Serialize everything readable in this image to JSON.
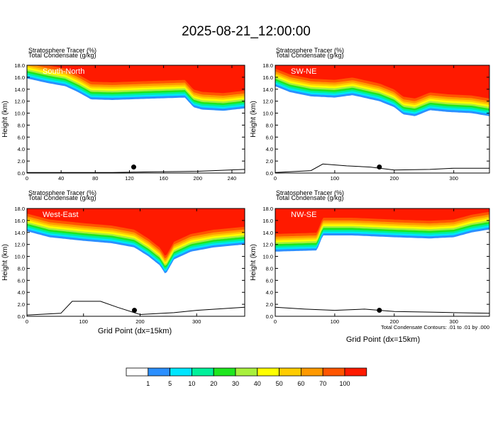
{
  "title": "2025-08-21_12:00:00",
  "panel_header_line1": "Stratosphere Tracer   (%)",
  "panel_header_line2": "Total Condensate   (g/kg)",
  "ylabel": "Height (km)",
  "xlabel": "Grid Point (dx=15km)",
  "contour_note": "Total Condensate Contours: .01 to .01 by .000",
  "colorbar": {
    "labels": [
      "1",
      "5",
      "10",
      "20",
      "30",
      "40",
      "50",
      "60",
      "70",
      "100"
    ],
    "colors": [
      "#ffffff",
      "#2b8fff",
      "#00e5ff",
      "#00f09a",
      "#1ee61e",
      "#a8f03c",
      "#ffff00",
      "#ffcc00",
      "#ff9900",
      "#ff5500",
      "#ff1a00"
    ]
  },
  "chart_data": [
    {
      "type": "heatmap",
      "name": "South-North",
      "xlim": [
        0,
        255
      ],
      "ylim": [
        0,
        18
      ],
      "xticks": [
        0,
        40,
        80,
        120,
        160,
        200,
        240
      ],
      "yticks": [
        0.0,
        2.0,
        4.0,
        6.0,
        8.0,
        10.0,
        12.0,
        14.0,
        16.0,
        18.0
      ],
      "tracer_base_km": [
        [
          0,
          15.8
        ],
        [
          25,
          15.0
        ],
        [
          45,
          14.5
        ],
        [
          60,
          13.5
        ],
        [
          75,
          12.3
        ],
        [
          100,
          12.2
        ],
        [
          140,
          12.4
        ],
        [
          185,
          12.6
        ],
        [
          195,
          11.0
        ],
        [
          205,
          10.6
        ],
        [
          230,
          10.4
        ],
        [
          255,
          10.8
        ]
      ],
      "terrain_km": [
        [
          0,
          0.1
        ],
        [
          100,
          0.1
        ],
        [
          150,
          0.2
        ],
        [
          200,
          0.3
        ],
        [
          255,
          0.6
        ]
      ],
      "marker": {
        "x": 125,
        "y": 1.0
      }
    },
    {
      "type": "heatmap",
      "name": "SW-NE",
      "xlim": [
        0,
        360
      ],
      "ylim": [
        0,
        18
      ],
      "xticks": [
        0,
        100,
        200,
        300
      ],
      "yticks": [
        0.0,
        2.0,
        4.0,
        6.0,
        8.0,
        10.0,
        12.0,
        14.0,
        16.0,
        18.0
      ],
      "tracer_base_km": [
        [
          0,
          14.5
        ],
        [
          25,
          13.5
        ],
        [
          60,
          12.8
        ],
        [
          100,
          12.6
        ],
        [
          130,
          13.0
        ],
        [
          175,
          12.0
        ],
        [
          200,
          11.0
        ],
        [
          215,
          9.8
        ],
        [
          235,
          9.5
        ],
        [
          260,
          10.5
        ],
        [
          290,
          10.2
        ],
        [
          330,
          10.0
        ],
        [
          360,
          9.5
        ]
      ],
      "terrain_km": [
        [
          0,
          0.1
        ],
        [
          60,
          0.4
        ],
        [
          80,
          1.5
        ],
        [
          120,
          1.2
        ],
        [
          160,
          1.0
        ],
        [
          200,
          0.5
        ],
        [
          260,
          0.6
        ],
        [
          300,
          0.8
        ],
        [
          360,
          0.8
        ]
      ],
      "marker": {
        "x": 175,
        "y": 1.0
      }
    },
    {
      "type": "heatmap",
      "name": "West-East",
      "xlim": [
        0,
        385
      ],
      "ylim": [
        0,
        18
      ],
      "xticks": [
        0,
        100,
        200,
        300
      ],
      "yticks": [
        0.0,
        2.0,
        4.0,
        6.0,
        8.0,
        10.0,
        12.0,
        14.0,
        16.0,
        18.0
      ],
      "tracer_base_km": [
        [
          0,
          14.2
        ],
        [
          40,
          13.2
        ],
        [
          100,
          12.6
        ],
        [
          150,
          12.2
        ],
        [
          190,
          11.5
        ],
        [
          215,
          10.0
        ],
        [
          235,
          8.5
        ],
        [
          245,
          7.0
        ],
        [
          260,
          9.5
        ],
        [
          290,
          10.8
        ],
        [
          330,
          11.5
        ],
        [
          385,
          12.0
        ]
      ],
      "terrain_km": [
        [
          0,
          0.2
        ],
        [
          60,
          0.5
        ],
        [
          80,
          2.5
        ],
        [
          130,
          2.5
        ],
        [
          160,
          1.5
        ],
        [
          200,
          0.3
        ],
        [
          260,
          0.6
        ],
        [
          300,
          1.0
        ],
        [
          385,
          1.5
        ]
      ],
      "marker": {
        "x": 190,
        "y": 1.0
      }
    },
    {
      "type": "heatmap",
      "name": "NW-SE",
      "xlim": [
        0,
        360
      ],
      "ylim": [
        0,
        18
      ],
      "xticks": [
        0,
        100,
        200,
        300
      ],
      "yticks": [
        0.0,
        2.0,
        4.0,
        6.0,
        8.0,
        10.0,
        12.0,
        14.0,
        16.0,
        18.0
      ],
      "tracer_base_km": [
        [
          0,
          10.8
        ],
        [
          70,
          11.0
        ],
        [
          80,
          13.5
        ],
        [
          130,
          13.5
        ],
        [
          200,
          13.2
        ],
        [
          260,
          13.0
        ],
        [
          300,
          13.2
        ],
        [
          330,
          14.0
        ],
        [
          360,
          14.5
        ]
      ],
      "terrain_km": [
        [
          0,
          1.5
        ],
        [
          50,
          1.2
        ],
        [
          100,
          1.0
        ],
        [
          150,
          1.2
        ],
        [
          200,
          0.8
        ],
        [
          260,
          0.7
        ],
        [
          300,
          0.6
        ],
        [
          360,
          0.5
        ]
      ],
      "marker": {
        "x": 175,
        "y": 1.0
      }
    }
  ]
}
